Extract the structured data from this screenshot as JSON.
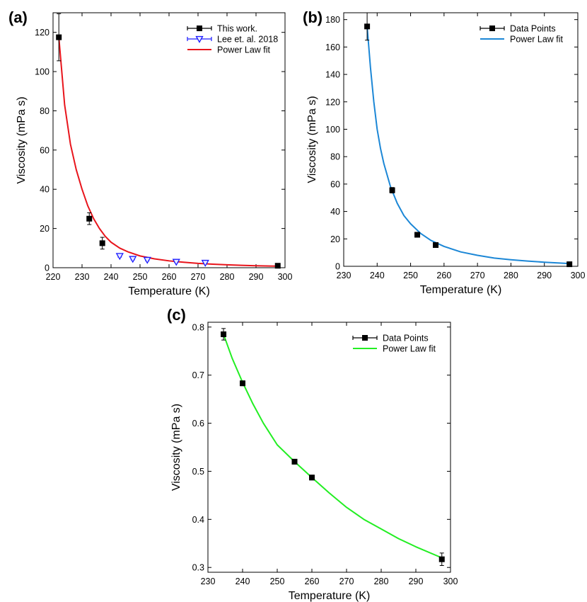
{
  "chart_data": [
    {
      "panel": "(a)",
      "type": "scatter",
      "xlabel": "Temperature (K)",
      "ylabel": "Viscosity (mPa s)",
      "xlim": [
        220,
        300
      ],
      "ylim": [
        0,
        130
      ],
      "xticks": [
        220,
        230,
        240,
        250,
        260,
        270,
        280,
        290,
        300
      ],
      "yticks": [
        0,
        20,
        40,
        60,
        80,
        100,
        120
      ],
      "legend_position": "top-right",
      "series": [
        {
          "name": "This work.",
          "kind": "points",
          "marker": "square",
          "color": "#000000",
          "x": [
            222.0,
            232.5,
            237.0,
            297.5
          ],
          "y": [
            117.5,
            25.0,
            12.5,
            1.0
          ],
          "err": [
            12.0,
            3.0,
            3.0,
            1.0
          ]
        },
        {
          "name": "Lee et. al. 2018",
          "kind": "points",
          "marker": "triangle-down",
          "color": "#1a1aff",
          "x": [
            243.0,
            247.5,
            252.5,
            262.5,
            272.5
          ],
          "y": [
            6.0,
            4.5,
            4.0,
            3.0,
            2.5
          ],
          "err": [
            0.6,
            0.5,
            0.5,
            0.4,
            0.4
          ]
        },
        {
          "name": "Power Law fit",
          "kind": "line",
          "color": "#e8141b",
          "x": [
            222,
            224,
            226,
            228,
            230,
            232,
            234,
            236,
            238,
            240,
            243,
            246,
            250,
            255,
            260,
            265,
            270,
            275,
            280,
            285,
            290,
            297.5
          ],
          "y": [
            117.5,
            83.0,
            63.0,
            50.0,
            40.0,
            31.5,
            25.0,
            20.0,
            16.0,
            13.0,
            10.0,
            8.0,
            6.0,
            4.5,
            3.5,
            2.8,
            2.2,
            1.8,
            1.5,
            1.2,
            1.0,
            0.8
          ]
        }
      ]
    },
    {
      "panel": "(b)",
      "type": "scatter",
      "xlabel": "Temperature (K)",
      "ylabel": "Viscosity (mPa s)",
      "xlim": [
        230,
        300
      ],
      "ylim": [
        0,
        185
      ],
      "xticks": [
        230,
        240,
        250,
        260,
        270,
        280,
        290,
        300
      ],
      "yticks": [
        0,
        20,
        40,
        60,
        80,
        100,
        120,
        140,
        160,
        180
      ],
      "legend_position": "top-right",
      "series": [
        {
          "name": "Data Points",
          "kind": "points",
          "marker": "square",
          "color": "#000000",
          "x": [
            237.0,
            244.5,
            252.0,
            257.5,
            297.5
          ],
          "y": [
            175.0,
            55.5,
            23.0,
            15.5,
            1.5
          ],
          "err": [
            10.0,
            2.0,
            1.5,
            1.0,
            1.0
          ]
        },
        {
          "name": "Power Law fit",
          "kind": "line",
          "color": "#1c87d6",
          "x": [
            237,
            238,
            239,
            240,
            241,
            242,
            244,
            246,
            248,
            250,
            253,
            256,
            260,
            265,
            270,
            275,
            280,
            285,
            290,
            297.5
          ],
          "y": [
            175.0,
            145.0,
            120.0,
            100.0,
            86.0,
            75.0,
            58.0,
            46.0,
            37.0,
            31.0,
            24.0,
            19.0,
            14.5,
            10.5,
            8.0,
            6.0,
            4.8,
            3.8,
            3.0,
            2.0
          ]
        }
      ]
    },
    {
      "panel": "(c)",
      "type": "scatter",
      "xlabel": "Temperature (K)",
      "ylabel": "Viscosity (mPa s)",
      "xlim": [
        230,
        300
      ],
      "ylim": [
        0.29,
        0.81
      ],
      "xticks": [
        230,
        240,
        250,
        260,
        270,
        280,
        290,
        300
      ],
      "yticks": [
        0.3,
        0.4,
        0.5,
        0.6,
        0.7,
        0.8
      ],
      "tick_decimals": 1,
      "legend_position": "top-right",
      "series": [
        {
          "name": "Data Points",
          "kind": "points",
          "marker": "square",
          "color": "#000000",
          "x": [
            234.5,
            240.0,
            255.0,
            260.0,
            297.5
          ],
          "y": [
            0.785,
            0.683,
            0.52,
            0.487,
            0.317
          ],
          "err": [
            0.012,
            0.005,
            0.005,
            0.005,
            0.013
          ]
        },
        {
          "name": "Power Law fit",
          "kind": "line",
          "color": "#22ee22",
          "x": [
            234.5,
            237,
            240,
            243,
            246,
            250,
            255,
            260,
            265,
            270,
            275,
            280,
            285,
            290,
            297.5
          ],
          "y": [
            0.785,
            0.735,
            0.685,
            0.64,
            0.6,
            0.555,
            0.52,
            0.487,
            0.455,
            0.425,
            0.4,
            0.38,
            0.36,
            0.343,
            0.32
          ]
        }
      ]
    }
  ]
}
